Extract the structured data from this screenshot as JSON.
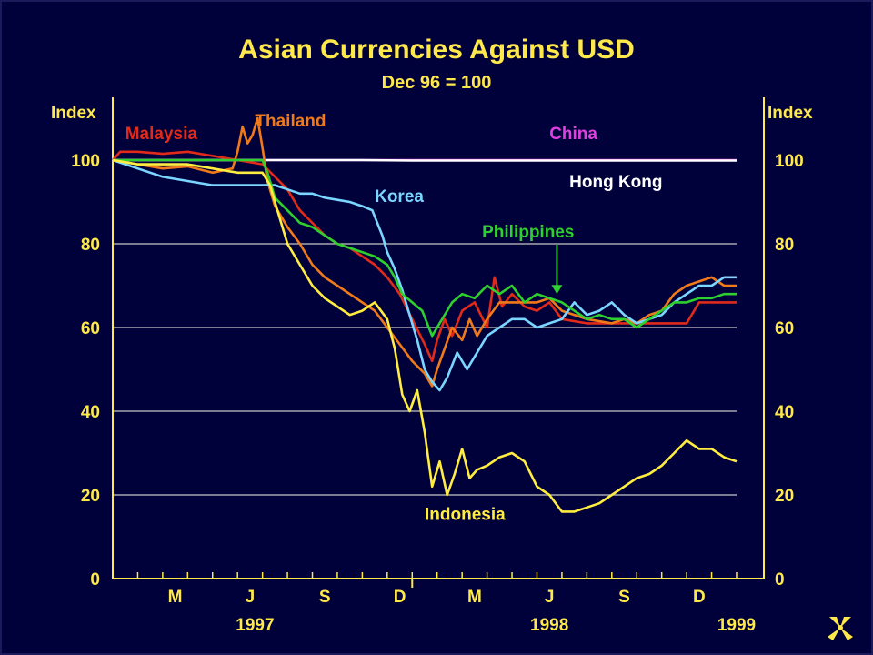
{
  "chart_data": {
    "type": "line",
    "title": "Asian Currencies Against USD",
    "subtitle": "Dec 96 = 100",
    "ylabel_left": "Index",
    "ylabel_right": "Index",
    "ylim": [
      0,
      115
    ],
    "yticks": [
      "0",
      "20",
      "40",
      "60",
      "80",
      "100"
    ],
    "ytick_values": [
      0,
      20,
      40,
      60,
      80,
      100
    ],
    "xlim": [
      0,
      25
    ],
    "month_ticks": [
      {
        "label": "M",
        "x": 2.5
      },
      {
        "label": "J",
        "x": 5.5
      },
      {
        "label": "S",
        "x": 8.5
      },
      {
        "label": "D",
        "x": 11.5
      },
      {
        "label": "M",
        "x": 14.5
      },
      {
        "label": "J",
        "x": 17.5
      },
      {
        "label": "S",
        "x": 20.5
      },
      {
        "label": "D",
        "x": 23.5
      }
    ],
    "year_labels": [
      {
        "label": "1997",
        "x": 5.7
      },
      {
        "label": "1998",
        "x": 17.5
      },
      {
        "label": "1999",
        "x": 25
      }
    ],
    "grid": true,
    "series": [
      {
        "name": "China",
        "color": "#e040e0",
        "label_pos": [
          17.5,
          105
        ],
        "arrow": null,
        "points": [
          [
            0,
            100
          ],
          [
            25,
            100
          ]
        ]
      },
      {
        "name": "Hong Kong",
        "color": "#ffffff",
        "label_pos": [
          18.3,
          93.5
        ],
        "arrow": null,
        "points": [
          [
            0,
            100
          ],
          [
            4,
            100
          ],
          [
            6.5,
            100
          ],
          [
            10,
            100
          ],
          [
            12,
            99.9
          ],
          [
            14,
            99.9
          ],
          [
            18,
            99.9
          ],
          [
            22,
            99.9
          ],
          [
            25,
            99.9
          ]
        ]
      },
      {
        "name": "Malaysia",
        "color": "#e02a1a",
        "label_pos": [
          0.5,
          105
        ],
        "arrow": null,
        "points": [
          [
            0,
            100
          ],
          [
            0.3,
            102
          ],
          [
            1,
            102
          ],
          [
            2,
            101.5
          ],
          [
            3,
            102
          ],
          [
            4,
            101
          ],
          [
            5,
            100
          ],
          [
            6,
            99
          ],
          [
            6.5,
            96
          ],
          [
            7,
            93
          ],
          [
            7.5,
            88
          ],
          [
            8,
            85
          ],
          [
            8.5,
            82
          ],
          [
            9,
            80
          ],
          [
            9.5,
            79
          ],
          [
            10,
            77
          ],
          [
            10.5,
            75
          ],
          [
            11,
            72
          ],
          [
            11.5,
            68
          ],
          [
            12,
            62
          ],
          [
            12.5,
            56
          ],
          [
            12.8,
            52
          ],
          [
            13,
            57
          ],
          [
            13.3,
            62
          ],
          [
            13.6,
            58
          ],
          [
            14,
            64
          ],
          [
            14.5,
            66
          ],
          [
            15,
            60
          ],
          [
            15.3,
            72
          ],
          [
            15.6,
            65
          ],
          [
            16,
            68
          ],
          [
            16.5,
            65
          ],
          [
            17,
            64
          ],
          [
            17.5,
            66
          ],
          [
            18,
            62
          ],
          [
            19,
            61
          ],
          [
            20,
            61
          ],
          [
            21,
            61
          ],
          [
            22,
            61
          ],
          [
            23,
            61
          ],
          [
            23.5,
            66
          ],
          [
            24,
            66
          ],
          [
            25,
            66
          ]
        ]
      },
      {
        "name": "Thailand",
        "color": "#f07a1a",
        "label_pos": [
          5.7,
          108
        ],
        "arrow": null,
        "points": [
          [
            0,
            100
          ],
          [
            1,
            99
          ],
          [
            2,
            98
          ],
          [
            3,
            98.5
          ],
          [
            4,
            97
          ],
          [
            4.8,
            98
          ],
          [
            5,
            102
          ],
          [
            5.2,
            108
          ],
          [
            5.4,
            104
          ],
          [
            5.6,
            106
          ],
          [
            5.8,
            110
          ],
          [
            6,
            103
          ],
          [
            6.2,
            95
          ],
          [
            6.5,
            89
          ],
          [
            7,
            84
          ],
          [
            7.5,
            80
          ],
          [
            8,
            75
          ],
          [
            8.5,
            72
          ],
          [
            9,
            70
          ],
          [
            9.5,
            68
          ],
          [
            10,
            66
          ],
          [
            10.5,
            64
          ],
          [
            11,
            60
          ],
          [
            11.5,
            56
          ],
          [
            12,
            52
          ],
          [
            12.5,
            49
          ],
          [
            12.8,
            46
          ],
          [
            13,
            50
          ],
          [
            13.3,
            55
          ],
          [
            13.6,
            60
          ],
          [
            14,
            57
          ],
          [
            14.3,
            62
          ],
          [
            14.6,
            58
          ],
          [
            15,
            62
          ],
          [
            15.5,
            66
          ],
          [
            16,
            66
          ],
          [
            17,
            66
          ],
          [
            17.5,
            67
          ],
          [
            18,
            64
          ],
          [
            19,
            62
          ],
          [
            20,
            61
          ],
          [
            20.5,
            62
          ],
          [
            21,
            61
          ],
          [
            21.5,
            63
          ],
          [
            22,
            64
          ],
          [
            22.5,
            68
          ],
          [
            23,
            70
          ],
          [
            23.5,
            71
          ],
          [
            24,
            72
          ],
          [
            24.5,
            70
          ],
          [
            25,
            70
          ]
        ]
      },
      {
        "name": "Korea",
        "color": "#7ad6ff",
        "label_pos": [
          10.5,
          90
        ],
        "arrow": null,
        "points": [
          [
            0,
            100
          ],
          [
            1,
            98
          ],
          [
            2,
            96
          ],
          [
            3,
            95
          ],
          [
            4,
            94
          ],
          [
            5,
            94
          ],
          [
            6,
            94
          ],
          [
            6.5,
            94
          ],
          [
            7,
            93
          ],
          [
            7.5,
            92
          ],
          [
            8,
            92
          ],
          [
            8.5,
            91
          ],
          [
            9,
            90.5
          ],
          [
            9.5,
            90
          ],
          [
            10,
            89
          ],
          [
            10.4,
            88
          ],
          [
            10.8,
            82
          ],
          [
            11,
            78
          ],
          [
            11.3,
            74
          ],
          [
            11.6,
            69
          ],
          [
            11.9,
            63
          ],
          [
            12.2,
            57
          ],
          [
            12.5,
            50
          ],
          [
            12.8,
            47
          ],
          [
            13.1,
            45
          ],
          [
            13.4,
            48
          ],
          [
            13.8,
            54
          ],
          [
            14.2,
            50
          ],
          [
            14.6,
            54
          ],
          [
            15,
            58
          ],
          [
            15.5,
            60
          ],
          [
            16,
            62
          ],
          [
            16.5,
            62
          ],
          [
            17,
            60
          ],
          [
            17.5,
            61
          ],
          [
            18,
            62
          ],
          [
            18.5,
            66
          ],
          [
            19,
            63
          ],
          [
            19.5,
            64
          ],
          [
            20,
            66
          ],
          [
            20.5,
            63
          ],
          [
            21,
            61
          ],
          [
            21.5,
            62
          ],
          [
            22,
            63
          ],
          [
            22.5,
            66
          ],
          [
            23,
            68
          ],
          [
            23.5,
            70
          ],
          [
            24,
            70
          ],
          [
            24.5,
            72
          ],
          [
            25,
            72
          ]
        ]
      },
      {
        "name": "Philippines",
        "color": "#2ed02e",
        "label_pos": [
          14.8,
          81.5
        ],
        "arrow": [
          17.8,
          68
        ],
        "points": [
          [
            0,
            100
          ],
          [
            2,
            100
          ],
          [
            4,
            100
          ],
          [
            6,
            100
          ],
          [
            6.2,
            97
          ],
          [
            6.5,
            91
          ],
          [
            7,
            88
          ],
          [
            7.5,
            85
          ],
          [
            8,
            84
          ],
          [
            8.5,
            82
          ],
          [
            9,
            80
          ],
          [
            9.5,
            79
          ],
          [
            10,
            78
          ],
          [
            10.5,
            77
          ],
          [
            11,
            75
          ],
          [
            11.3,
            72
          ],
          [
            11.6,
            68
          ],
          [
            12,
            66
          ],
          [
            12.4,
            64
          ],
          [
            12.8,
            58
          ],
          [
            13.2,
            62
          ],
          [
            13.6,
            66
          ],
          [
            14,
            68
          ],
          [
            14.5,
            67
          ],
          [
            15,
            70
          ],
          [
            15.5,
            68
          ],
          [
            16,
            70
          ],
          [
            16.5,
            66
          ],
          [
            17,
            68
          ],
          [
            17.5,
            67
          ],
          [
            18,
            66
          ],
          [
            18.5,
            64
          ],
          [
            19,
            62
          ],
          [
            19.5,
            63
          ],
          [
            20,
            62
          ],
          [
            20.5,
            62
          ],
          [
            21,
            60
          ],
          [
            21.5,
            62
          ],
          [
            22,
            64
          ],
          [
            22.5,
            66
          ],
          [
            23,
            66
          ],
          [
            23.5,
            67
          ],
          [
            24,
            67
          ],
          [
            24.5,
            68
          ],
          [
            25,
            68
          ]
        ]
      },
      {
        "name": "Indonesia",
        "color": "#ffee40",
        "label_pos": [
          12.5,
          14
        ],
        "arrow": null,
        "points": [
          [
            0,
            100
          ],
          [
            1,
            99
          ],
          [
            2,
            99
          ],
          [
            3,
            99
          ],
          [
            4,
            98
          ],
          [
            5,
            97
          ],
          [
            6,
            97
          ],
          [
            6.3,
            94
          ],
          [
            6.6,
            88
          ],
          [
            7,
            80
          ],
          [
            7.5,
            75
          ],
          [
            8,
            70
          ],
          [
            8.5,
            67
          ],
          [
            9,
            65
          ],
          [
            9.5,
            63
          ],
          [
            10,
            64
          ],
          [
            10.5,
            66
          ],
          [
            11,
            62
          ],
          [
            11.3,
            55
          ],
          [
            11.6,
            44
          ],
          [
            11.9,
            40
          ],
          [
            12.2,
            45
          ],
          [
            12.5,
            35
          ],
          [
            12.8,
            22
          ],
          [
            13.1,
            28
          ],
          [
            13.4,
            20
          ],
          [
            13.7,
            25
          ],
          [
            14,
            31
          ],
          [
            14.3,
            24
          ],
          [
            14.6,
            26
          ],
          [
            15,
            27
          ],
          [
            15.5,
            29
          ],
          [
            16,
            30
          ],
          [
            16.5,
            28
          ],
          [
            17,
            22
          ],
          [
            17.5,
            20
          ],
          [
            18,
            16
          ],
          [
            18.5,
            16
          ],
          [
            19,
            17
          ],
          [
            19.5,
            18
          ],
          [
            20,
            20
          ],
          [
            20.5,
            22
          ],
          [
            21,
            24
          ],
          [
            21.5,
            25
          ],
          [
            22,
            27
          ],
          [
            22.5,
            30
          ],
          [
            23,
            33
          ],
          [
            23.5,
            31
          ],
          [
            24,
            31
          ],
          [
            24.5,
            29
          ],
          [
            25,
            28
          ]
        ]
      }
    ]
  }
}
